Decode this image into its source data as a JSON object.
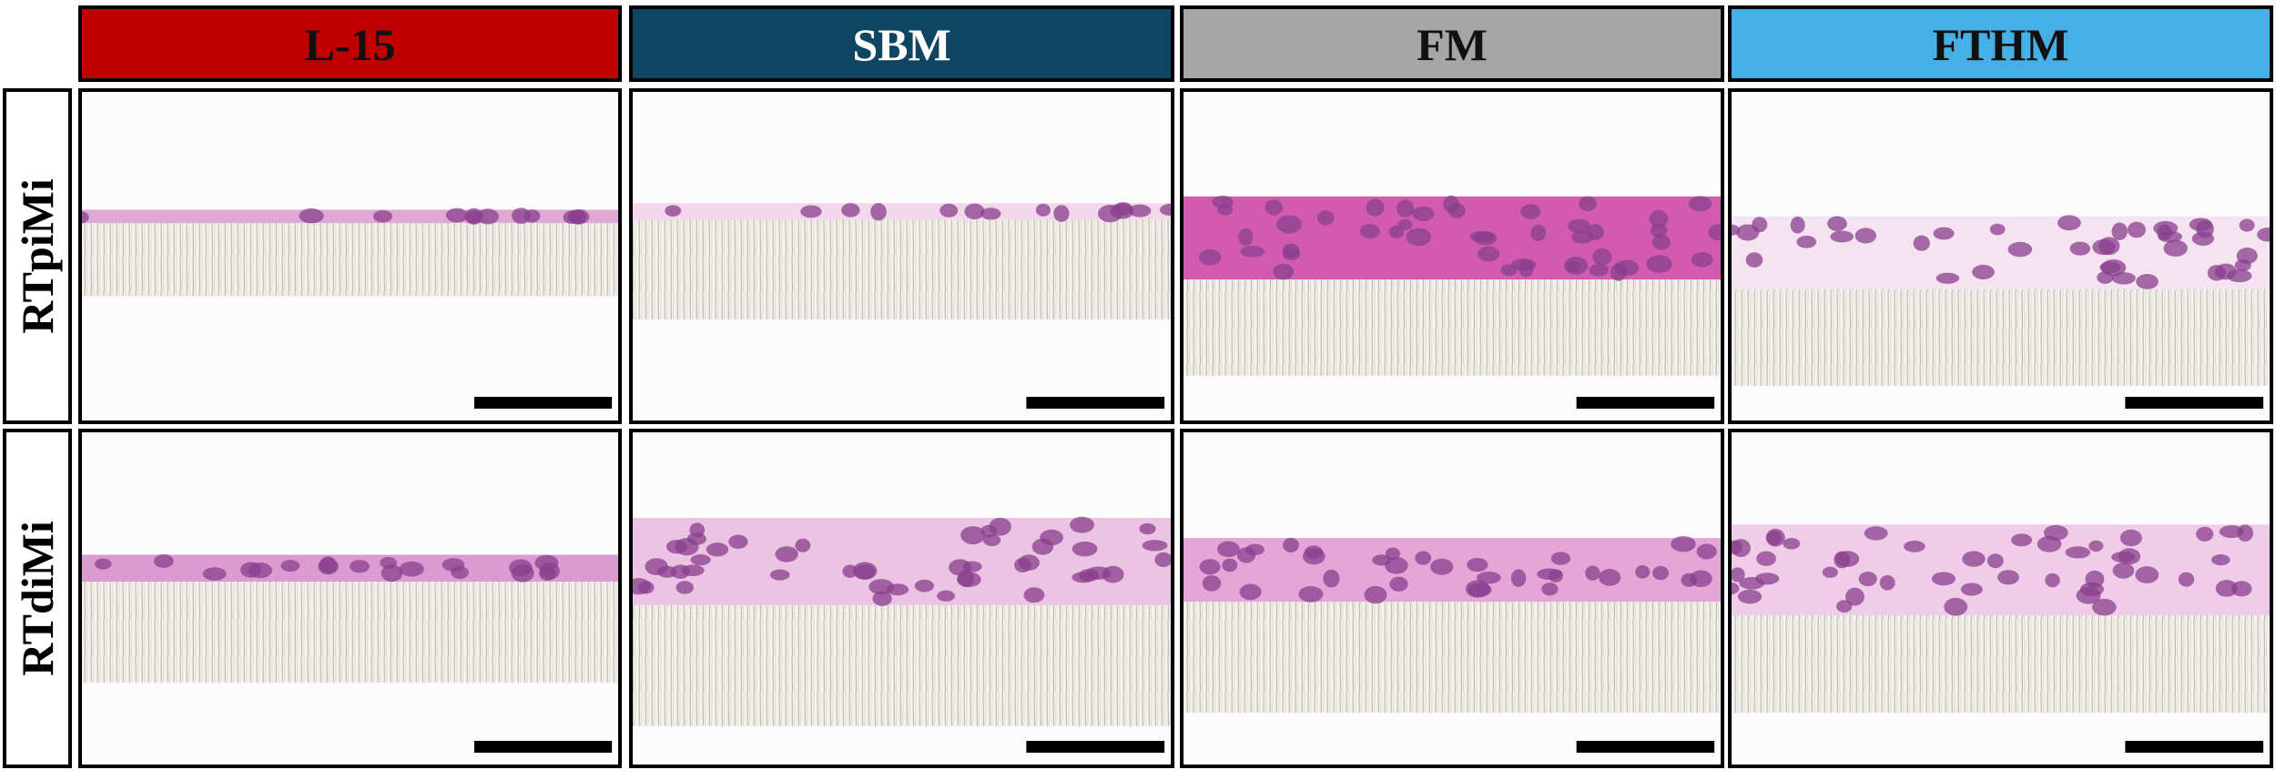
{
  "columns": [
    "L-15",
    "SBM",
    "FM",
    "FTHM"
  ],
  "rows": [
    "RTpiMi",
    "RTdiMi"
  ]
}
